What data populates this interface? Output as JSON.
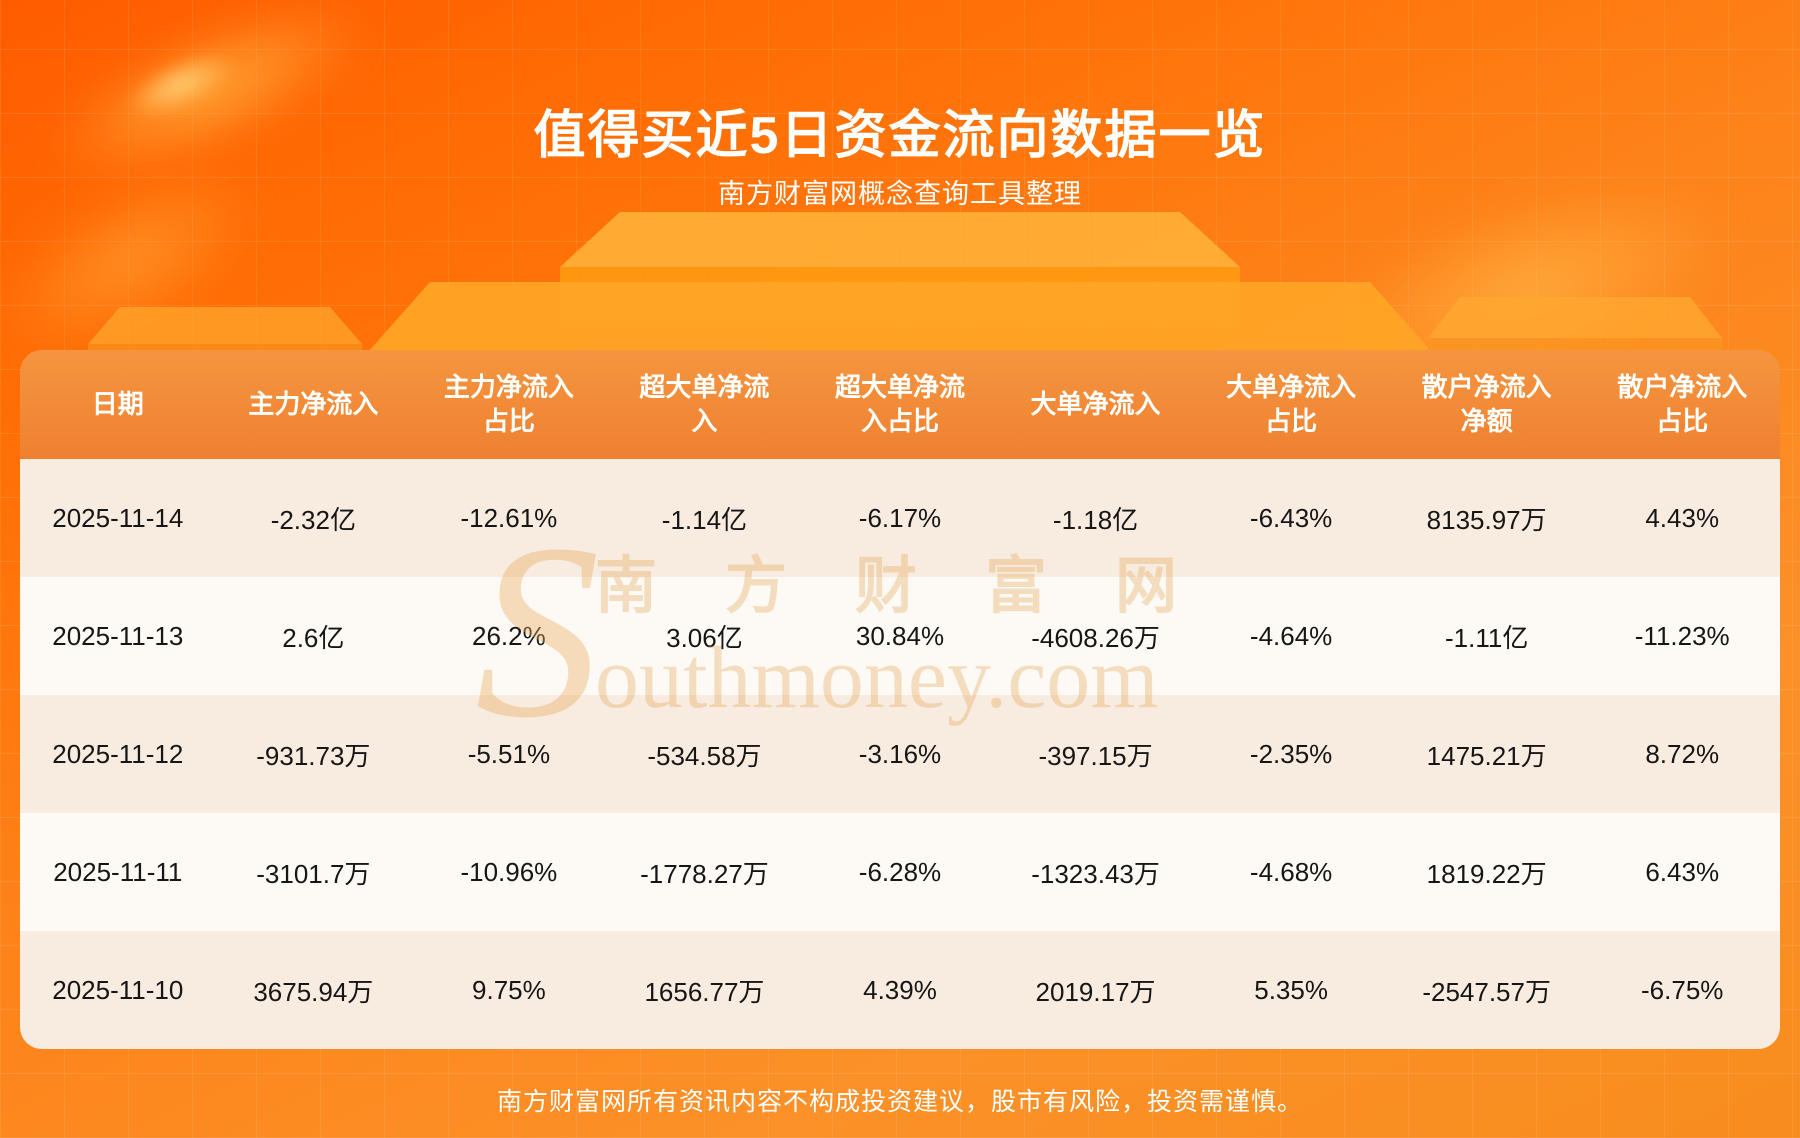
{
  "page": {
    "title": "值得买近5日资金流向数据一览",
    "subtitle": "南方财富网概念查询工具整理",
    "disclaimer": "南方财富网所有资讯内容不构成投资建议，股市有风险，投资需谨慎。"
  },
  "watermark": {
    "initial": "S",
    "cn": "南方财富网",
    "rest": "outhmoney.com"
  },
  "colors": {
    "background_top": "#ff5c00",
    "background_bottom": "#f88c1e",
    "header_bg": "#ee8130",
    "row_odd": "#f8ece1",
    "row_even": "#fdfaf5",
    "header_text": "#ffffff",
    "cell_text": "#161616"
  },
  "chart_data": {
    "type": "table",
    "title": "值得买近5日资金流向数据一览",
    "columns": [
      "日期",
      "主力净流入",
      "主力净流入占比",
      "超大单净流入",
      "超大单净流入占比",
      "大单净流入",
      "大单净流入占比",
      "散户净流入净额",
      "散户净流入占比"
    ],
    "rows": [
      [
        "2025-11-14",
        "-2.32亿",
        "-12.61%",
        "-1.14亿",
        "-6.17%",
        "-1.18亿",
        "-6.43%",
        "8135.97万",
        "4.43%"
      ],
      [
        "2025-11-13",
        "2.6亿",
        "26.2%",
        "3.06亿",
        "30.84%",
        "-4608.26万",
        "-4.64%",
        "-1.11亿",
        "-11.23%"
      ],
      [
        "2025-11-12",
        "-931.73万",
        "-5.51%",
        "-534.58万",
        "-3.16%",
        "-397.15万",
        "-2.35%",
        "1475.21万",
        "8.72%"
      ],
      [
        "2025-11-11",
        "-3101.7万",
        "-10.96%",
        "-1778.27万",
        "-6.28%",
        "-1323.43万",
        "-4.68%",
        "1819.22万",
        "6.43%"
      ],
      [
        "2025-11-10",
        "3675.94万",
        "9.75%",
        "1656.77万",
        "4.39%",
        "2019.17万",
        "5.35%",
        "-2547.57万",
        "-6.75%"
      ]
    ]
  }
}
